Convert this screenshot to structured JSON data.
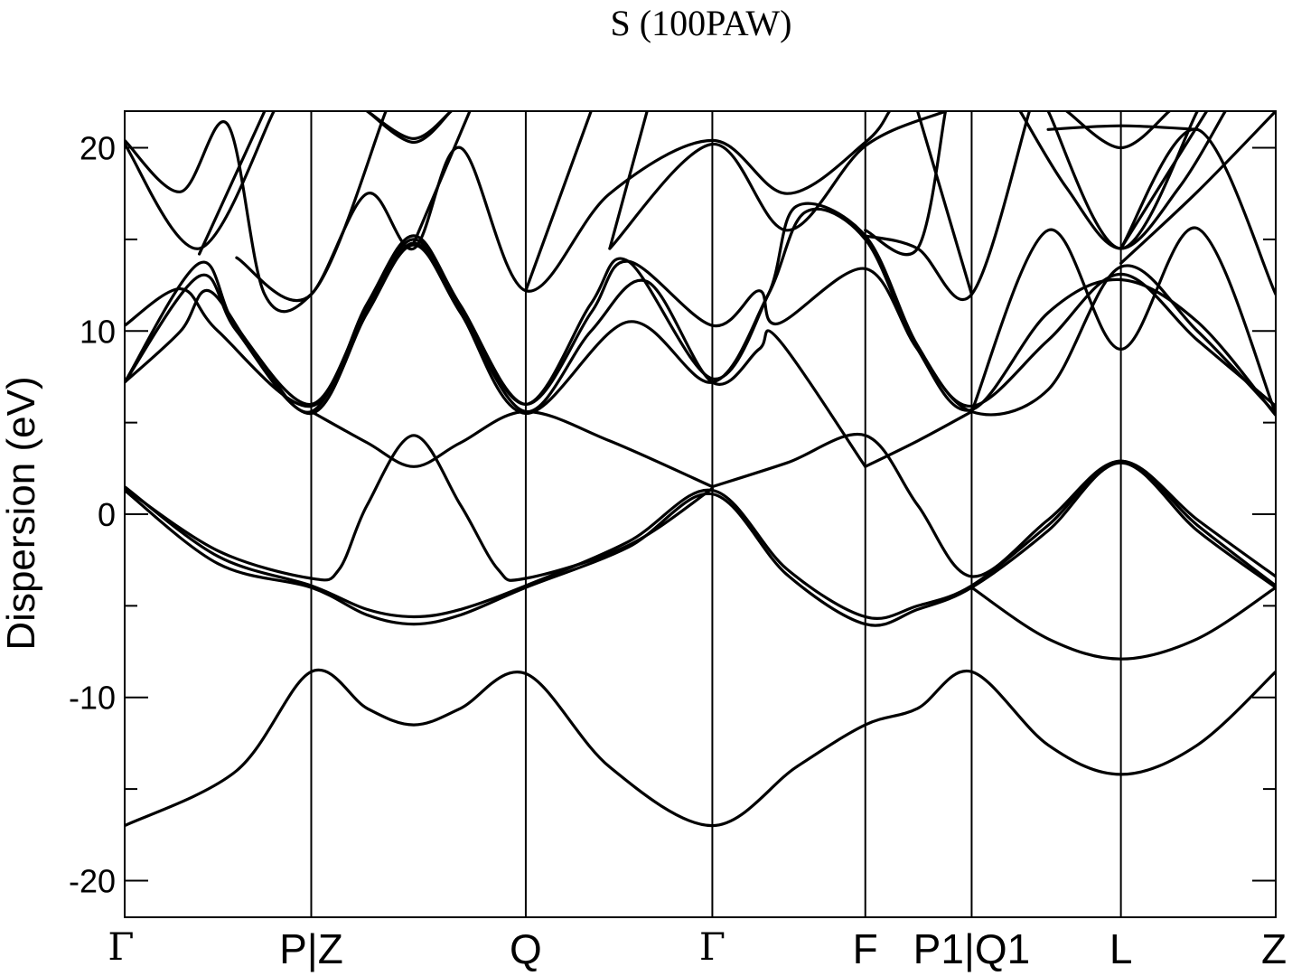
{
  "chart_data": {
    "type": "line",
    "title": "S (100PAW)",
    "ylabel": "Dispersion (eV)",
    "xlabel": "",
    "ylim": [
      -22,
      22
    ],
    "yticks": [
      -20,
      -10,
      0,
      10,
      20
    ],
    "grid": false,
    "legend": "none",
    "kpoints": [
      {
        "label": "Γ",
        "x": 0.0
      },
      {
        "label": "P|Z",
        "x": 1.0
      },
      {
        "label": "Q",
        "x": 2.15
      },
      {
        "label": "Γ",
        "x": 3.15
      },
      {
        "label": "F",
        "x": 3.97
      },
      {
        "label": "P1|Q1",
        "x": 4.54
      },
      {
        "label": "L",
        "x": 5.34
      },
      {
        "label": "Z",
        "x": 6.17
      }
    ],
    "series": [
      {
        "values": [
          [
            0,
            -17
          ],
          [
            0.6,
            -14
          ],
          [
            1.0,
            -8.6
          ],
          [
            1.3,
            -10.6
          ],
          [
            1.55,
            -11.5
          ],
          [
            1.8,
            -10.6
          ],
          [
            2.15,
            -8.7
          ],
          [
            2.6,
            -13.8
          ],
          [
            3.15,
            -17
          ],
          [
            3.6,
            -13.8
          ],
          [
            3.97,
            -11.5
          ],
          [
            4.25,
            -10.6
          ],
          [
            4.54,
            -8.6
          ],
          [
            4.95,
            -12.6
          ],
          [
            5.34,
            -14.2
          ],
          [
            5.75,
            -12.6
          ],
          [
            6.17,
            -8.6
          ]
        ]
      },
      {
        "values": [
          [
            4.54,
            -4.0
          ],
          [
            4.95,
            -6.8
          ],
          [
            5.34,
            -7.9
          ],
          [
            5.75,
            -6.8
          ],
          [
            6.17,
            -4.0
          ]
        ]
      },
      {
        "values": [
          [
            0,
            1.5
          ],
          [
            0.5,
            -2.3
          ],
          [
            1.0,
            -3.9
          ],
          [
            1.3,
            -5.2
          ],
          [
            1.55,
            -5.6
          ],
          [
            1.8,
            -5.2
          ],
          [
            2.15,
            -3.9
          ],
          [
            2.7,
            -1.5
          ],
          [
            3.15,
            1.3
          ],
          [
            3.55,
            -3.0
          ],
          [
            3.97,
            -5.6
          ],
          [
            4.25,
            -5.0
          ],
          [
            4.54,
            -3.9
          ],
          [
            4.95,
            -0.6
          ],
          [
            5.34,
            2.9
          ],
          [
            5.75,
            -0.6
          ],
          [
            6.17,
            -3.9
          ]
        ]
      },
      {
        "values": [
          [
            0,
            1.3
          ],
          [
            0.5,
            -2.7
          ],
          [
            1.0,
            -4.0
          ],
          [
            1.3,
            -5.5
          ],
          [
            1.55,
            -6.0
          ],
          [
            1.8,
            -5.5
          ],
          [
            2.15,
            -4.0
          ],
          [
            2.7,
            -1.8
          ],
          [
            3.15,
            1.1
          ],
          [
            3.55,
            -3.3
          ],
          [
            3.97,
            -6.0
          ],
          [
            4.25,
            -5.2
          ],
          [
            4.54,
            -4.0
          ],
          [
            4.95,
            -0.9
          ],
          [
            5.34,
            2.8
          ],
          [
            5.75,
            -0.9
          ],
          [
            6.17,
            -4.0
          ]
        ]
      },
      {
        "values": [
          [
            0,
            1.4
          ],
          [
            0.5,
            -2.0
          ],
          [
            1.0,
            -3.5
          ],
          [
            1.15,
            -3.0
          ],
          [
            1.3,
            0.5
          ],
          [
            1.55,
            4.3
          ],
          [
            1.8,
            0.5
          ],
          [
            2.0,
            -3.0
          ],
          [
            2.15,
            -3.5
          ],
          [
            2.7,
            -1.7
          ],
          [
            3.15,
            1.4
          ]
        ]
      },
      {
        "values": [
          [
            3.15,
            1.5
          ],
          [
            3.55,
            2.8
          ],
          [
            3.97,
            4.3
          ],
          [
            4.25,
            0.5
          ],
          [
            4.54,
            -3.4
          ],
          [
            4.95,
            -0.3
          ],
          [
            5.34,
            2.9
          ],
          [
            5.75,
            -0.3
          ],
          [
            6.17,
            -3.4
          ]
        ]
      },
      {
        "values": [
          [
            1.0,
            5.6
          ],
          [
            1.3,
            3.9
          ],
          [
            1.55,
            2.6
          ],
          [
            1.8,
            3.9
          ],
          [
            2.15,
            5.6
          ],
          [
            2.6,
            4.0
          ],
          [
            3.15,
            1.5
          ]
        ]
      },
      {
        "values": [
          [
            3.97,
            2.6
          ],
          [
            4.25,
            4.0
          ],
          [
            4.54,
            5.6
          ]
        ]
      },
      {
        "values": [
          [
            0,
            7.2
          ],
          [
            0.3,
            10.0
          ],
          [
            0.45,
            12.2
          ],
          [
            0.7,
            8.8
          ],
          [
            1.0,
            5.6
          ],
          [
            1.3,
            11.0
          ],
          [
            1.55,
            14.8
          ],
          [
            1.8,
            11.0
          ],
          [
            2.15,
            5.6
          ],
          [
            2.5,
            10.0
          ],
          [
            2.8,
            12.7
          ],
          [
            3.15,
            7.2
          ],
          [
            3.4,
            9.0
          ],
          [
            3.5,
            9.6
          ],
          [
            3.97,
            2.6
          ]
        ]
      },
      {
        "values": [
          [
            0,
            10.3
          ],
          [
            0.3,
            12.3
          ],
          [
            0.5,
            10.0
          ],
          [
            1.0,
            5.9
          ],
          [
            1.3,
            11.5
          ],
          [
            1.55,
            15.2
          ],
          [
            1.8,
            11.4
          ],
          [
            2.15,
            6.0
          ],
          [
            2.5,
            11.0
          ],
          [
            2.7,
            13.8
          ],
          [
            3.15,
            10.3
          ],
          [
            3.4,
            12.2
          ],
          [
            3.5,
            10.4
          ],
          [
            3.97,
            13.4
          ],
          [
            4.25,
            9.0
          ],
          [
            4.54,
            5.9
          ],
          [
            4.95,
            9.5
          ],
          [
            5.34,
            13.1
          ],
          [
            5.75,
            9.5
          ],
          [
            6.17,
            5.9
          ]
        ]
      },
      {
        "values": [
          [
            0,
            7.2
          ],
          [
            0.4,
            13.7
          ],
          [
            0.6,
            10.2
          ],
          [
            1.0,
            6.0
          ],
          [
            1.3,
            11.3
          ],
          [
            1.55,
            15.0
          ],
          [
            1.8,
            11.2
          ],
          [
            2.15,
            6.0
          ],
          [
            2.5,
            11.5
          ],
          [
            2.7,
            13.8
          ],
          [
            3.15,
            7.4
          ],
          [
            3.45,
            12.0
          ],
          [
            3.6,
            16.8
          ],
          [
            3.97,
            15.2
          ],
          [
            4.25,
            9.2
          ],
          [
            4.54,
            5.6
          ],
          [
            4.95,
            6.8
          ],
          [
            5.34,
            13.5
          ],
          [
            5.75,
            10.0
          ],
          [
            6.17,
            5.5
          ]
        ]
      },
      {
        "values": [
          [
            0,
            7.2
          ],
          [
            0.4,
            13.0
          ],
          [
            0.6,
            10.0
          ],
          [
            1.0,
            5.5
          ],
          [
            1.3,
            11.0
          ],
          [
            1.55,
            14.7
          ],
          [
            1.8,
            11.0
          ],
          [
            2.15,
            5.5
          ],
          [
            2.7,
            10.5
          ],
          [
            3.15,
            7.2
          ],
          [
            3.45,
            12.0
          ],
          [
            3.65,
            16.5
          ],
          [
            3.97,
            15.0
          ],
          [
            4.25,
            9.0
          ],
          [
            4.54,
            5.7
          ],
          [
            4.95,
            11.0
          ],
          [
            5.34,
            12.8
          ],
          [
            5.75,
            10.5
          ],
          [
            6.17,
            5.4
          ]
        ]
      },
      {
        "values": [
          [
            4.54,
            5.6
          ],
          [
            4.95,
            15.5
          ],
          [
            5.34,
            9.0
          ],
          [
            5.75,
            15.6
          ],
          [
            6.17,
            5.5
          ]
        ]
      },
      {
        "values": [
          [
            0,
            20.4
          ],
          [
            0.3,
            17.6
          ],
          [
            0.55,
            21.3
          ],
          [
            0.75,
            12.0
          ],
          [
            1.0,
            12.0
          ],
          [
            1.3,
            17.5
          ],
          [
            1.55,
            14.5
          ],
          [
            1.8,
            20.0
          ],
          [
            2.15,
            12.2
          ],
          [
            2.6,
            17.5
          ],
          [
            3.15,
            20.4
          ],
          [
            3.55,
            17.5
          ],
          [
            3.97,
            20.3
          ],
          [
            4.1,
            22
          ]
        ]
      },
      {
        "values": [
          [
            0,
            20.2
          ],
          [
            0.4,
            14.5
          ],
          [
            0.8,
            22
          ]
        ]
      },
      {
        "values": [
          [
            0.4,
            14.2
          ],
          [
            0.75,
            22
          ]
        ]
      },
      {
        "values": [
          [
            0.6,
            14.0
          ],
          [
            1.0,
            12.0
          ],
          [
            1.4,
            22
          ]
        ]
      },
      {
        "values": [
          [
            1.3,
            22
          ],
          [
            1.55,
            20.5
          ],
          [
            1.75,
            22
          ]
        ]
      },
      {
        "values": [
          [
            1.3,
            22
          ],
          [
            1.55,
            20.3
          ],
          [
            1.75,
            22
          ]
        ]
      },
      {
        "values": [
          [
            1.55,
            14.8
          ],
          [
            1.85,
            22
          ]
        ]
      },
      {
        "values": [
          [
            2.15,
            12.2
          ],
          [
            2.5,
            22
          ]
        ]
      },
      {
        "values": [
          [
            2.6,
            14.5
          ],
          [
            3.15,
            20.2
          ],
          [
            3.55,
            15.5
          ],
          [
            3.97,
            20.1
          ],
          [
            4.4,
            22
          ]
        ]
      },
      {
        "values": [
          [
            2.6,
            14.5
          ],
          [
            2.8,
            22
          ]
        ]
      },
      {
        "values": [
          [
            3.97,
            15.2
          ],
          [
            4.25,
            14.5
          ],
          [
            4.54,
            12.0
          ],
          [
            4.85,
            22
          ]
        ]
      },
      {
        "values": [
          [
            3.97,
            15.5
          ],
          [
            4.25,
            14.5
          ],
          [
            4.4,
            22
          ]
        ]
      },
      {
        "values": [
          [
            4.54,
            12.0
          ],
          [
            4.25,
            22
          ]
        ]
      },
      {
        "values": [
          [
            4.95,
            22
          ],
          [
            5.34,
            14.5
          ],
          [
            5.75,
            22
          ]
        ]
      },
      {
        "values": [
          [
            4.8,
            22
          ],
          [
            5.05,
            17.8
          ],
          [
            5.34,
            14.5
          ],
          [
            5.65,
            17.8
          ],
          [
            5.9,
            22
          ]
        ]
      },
      {
        "values": [
          [
            4.95,
            21
          ],
          [
            5.34,
            21.2
          ],
          [
            5.75,
            21
          ]
        ]
      },
      {
        "values": [
          [
            5.05,
            22
          ],
          [
            5.34,
            20.0
          ],
          [
            5.6,
            22
          ]
        ]
      },
      {
        "values": [
          [
            5.34,
            14.5
          ],
          [
            5.75,
            21.0
          ],
          [
            6.17,
            12.0
          ]
        ]
      },
      {
        "values": [
          [
            5.34,
            13.7
          ],
          [
            5.75,
            17.6
          ],
          [
            6.17,
            22
          ]
        ]
      },
      {
        "values": [
          [
            5.34,
            14.5
          ],
          [
            5.8,
            22
          ]
        ]
      }
    ]
  }
}
